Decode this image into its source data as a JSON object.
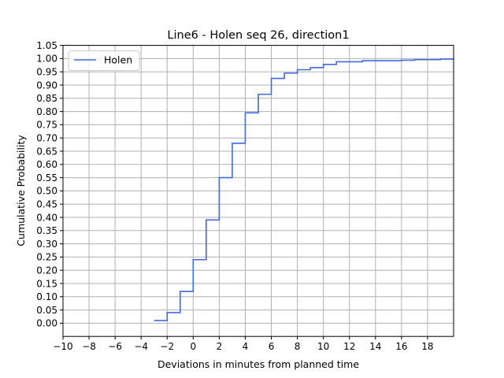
{
  "chart_data": {
    "type": "line",
    "step": "post",
    "title": "Line6 - Holen seq 26, direction1",
    "xlabel": "Deviations in minutes from planned time",
    "ylabel": "Cumulative Probability",
    "xlim": [
      -10,
      20
    ],
    "ylim": [
      -0.05,
      1.05
    ],
    "xticks": [
      -10,
      -8,
      -6,
      -4,
      -2,
      0,
      2,
      4,
      6,
      8,
      10,
      12,
      14,
      16,
      18
    ],
    "xtick_labels": [
      "−10",
      "−8",
      "−6",
      "−4",
      "−2",
      "0",
      "2",
      "4",
      "6",
      "8",
      "10",
      "12",
      "14",
      "16",
      "18"
    ],
    "yticks": [
      0.0,
      0.05,
      0.1,
      0.15,
      0.2,
      0.25,
      0.3,
      0.35,
      0.4,
      0.45,
      0.5,
      0.55,
      0.6,
      0.65,
      0.7,
      0.75,
      0.8,
      0.85,
      0.9,
      0.95,
      1.0,
      1.05
    ],
    "ytick_labels": [
      "0.00",
      "0.05",
      "0.10",
      "0.15",
      "0.20",
      "0.25",
      "0.30",
      "0.35",
      "0.40",
      "0.45",
      "0.50",
      "0.55",
      "0.60",
      "0.65",
      "0.70",
      "0.75",
      "0.80",
      "0.85",
      "0.90",
      "0.95",
      "1.00",
      "1.05"
    ],
    "grid": true,
    "legend": {
      "location": "upper-left"
    },
    "series": [
      {
        "name": "Holen",
        "color": "#4169e1",
        "x": [
          -3,
          -2,
          -1,
          0,
          1,
          2,
          3,
          4,
          5,
          6,
          7,
          8,
          9,
          10,
          11,
          13,
          16,
          17,
          19,
          20
        ],
        "y": [
          0.01,
          0.04,
          0.12,
          0.24,
          0.39,
          0.55,
          0.68,
          0.795,
          0.865,
          0.925,
          0.945,
          0.958,
          0.966,
          0.978,
          0.988,
          0.992,
          0.994,
          0.996,
          0.998,
          0.998
        ]
      }
    ]
  }
}
